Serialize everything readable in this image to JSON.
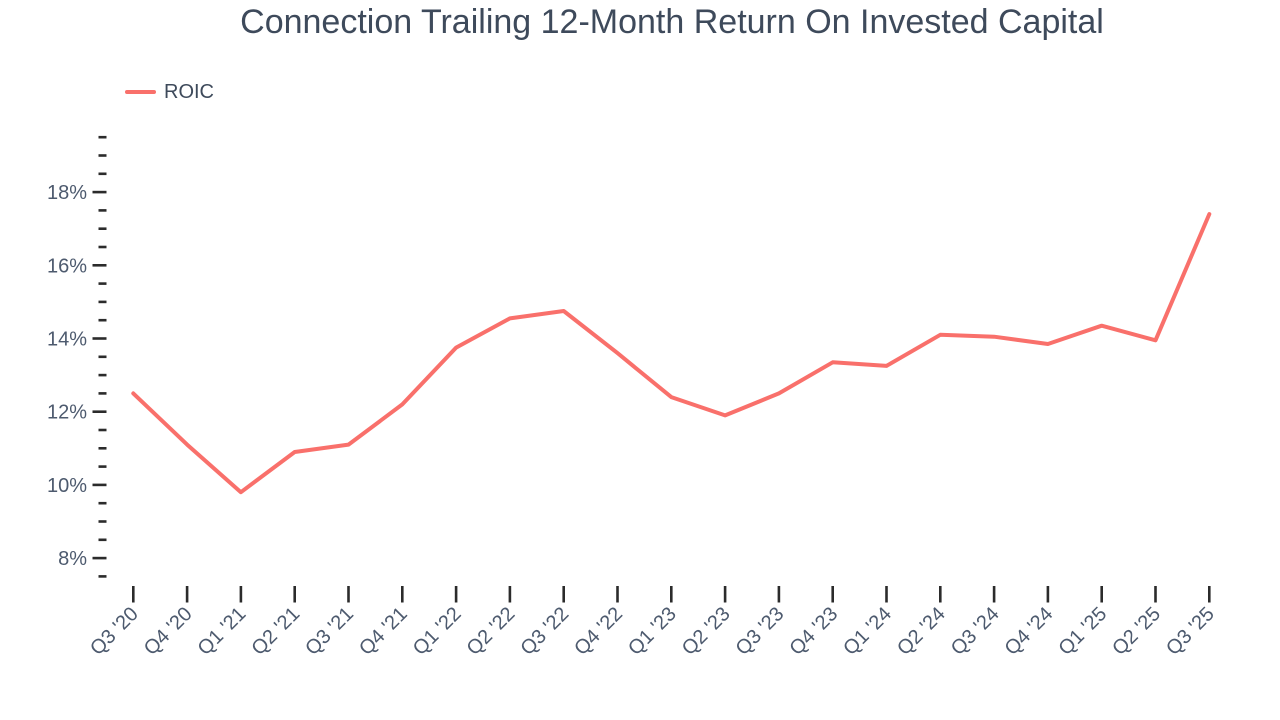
{
  "title": "Connection Trailing 12-Month Return On Invested Capital",
  "legend": {
    "label": "ROIC"
  },
  "colors": {
    "line": "#F9706B",
    "title_text": "#3E4A5B",
    "legend_text": "#3E4A5B",
    "axis_text": "#4D5A6E",
    "tick": "#2B2B2B",
    "background": "#FFFFFF"
  },
  "chart_data": {
    "type": "line",
    "title": "Connection Trailing 12-Month Return On Invested Capital",
    "categories": [
      "Q3 '20",
      "Q4 '20",
      "Q1 '21",
      "Q2 '21",
      "Q3 '21",
      "Q4 '21",
      "Q1 '22",
      "Q2 '22",
      "Q3 '22",
      "Q4 '22",
      "Q1 '23",
      "Q2 '23",
      "Q3 '23",
      "Q4 '23",
      "Q1 '24",
      "Q2 '24",
      "Q3 '24",
      "Q4 '24",
      "Q1 '25",
      "Q2 '25",
      "Q3 '25"
    ],
    "series": [
      {
        "name": "ROIC",
        "color": "#F9706B",
        "values": [
          12.5,
          11.1,
          9.8,
          10.9,
          11.1,
          12.2,
          13.75,
          14.55,
          14.75,
          13.6,
          12.4,
          11.9,
          12.5,
          13.35,
          13.25,
          14.1,
          14.05,
          13.85,
          14.35,
          13.95,
          17.4
        ]
      }
    ],
    "xlabel": "",
    "ylabel": "",
    "y_axis": {
      "unit": "%",
      "range": [
        7.5,
        19.5
      ],
      "minor_step": 0.5,
      "major_step": 2,
      "major_tick_labels": [
        "8%",
        "10%",
        "12%",
        "14%",
        "16%",
        "18%"
      ]
    },
    "grid": false,
    "legend_position": "top-left",
    "x_label_rotation": -45
  }
}
